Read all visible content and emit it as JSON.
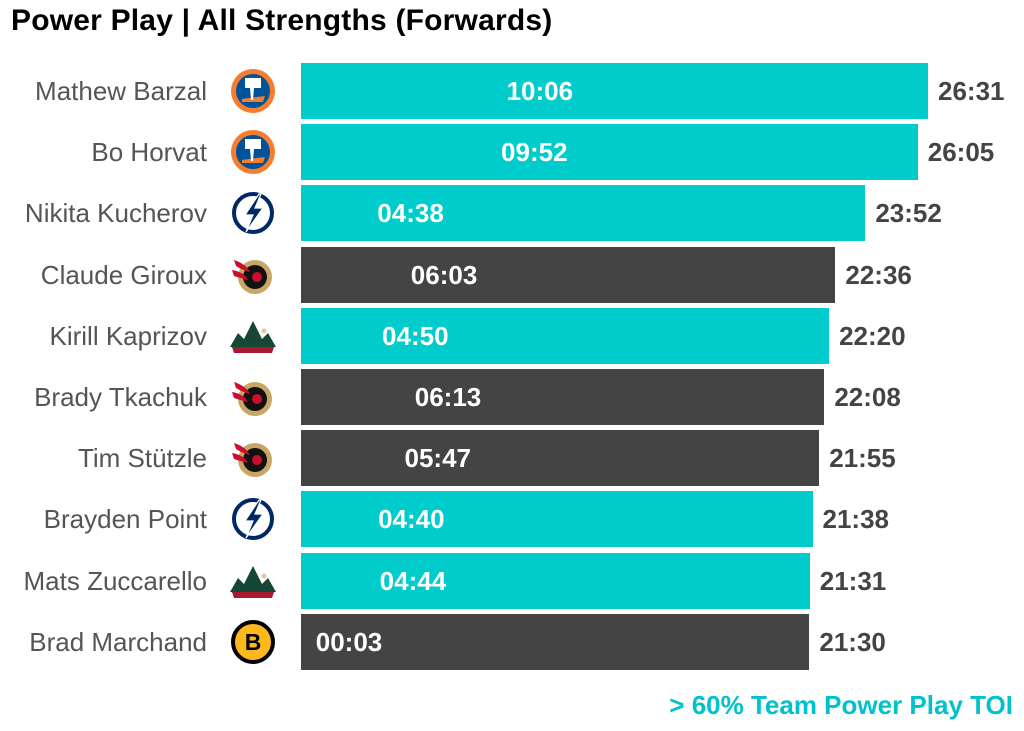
{
  "chart_data": {
    "type": "bar",
    "orientation": "horizontal",
    "title": "Power Play | All Strengths (Forwards)",
    "note": "> 60% Team Power Play TOI",
    "colors": {
      "highlight": "#00CCCC",
      "default": "#444444",
      "note": "#00C2CC"
    },
    "players": [
      {
        "name": "Mathew Barzal",
        "team_icon": "islanders-logo-icon",
        "total_toi": "26:31",
        "total_seconds": 1591,
        "pp_toi": "10:06",
        "pp_seconds": 606,
        "highlight": true
      },
      {
        "name": "Bo Horvat",
        "team_icon": "islanders-logo-icon",
        "total_toi": "26:05",
        "total_seconds": 1565,
        "pp_toi": "09:52",
        "pp_seconds": 592,
        "highlight": true
      },
      {
        "name": "Nikita Kucherov",
        "team_icon": "lightning-logo-icon",
        "total_toi": "23:52",
        "total_seconds": 1432,
        "pp_toi": "04:38",
        "pp_seconds": 278,
        "highlight": true
      },
      {
        "name": "Claude Giroux",
        "team_icon": "senators-logo-icon",
        "total_toi": "22:36",
        "total_seconds": 1356,
        "pp_toi": "06:03",
        "pp_seconds": 363,
        "highlight": false
      },
      {
        "name": "Kirill Kaprizov",
        "team_icon": "wild-logo-icon",
        "total_toi": "22:20",
        "total_seconds": 1340,
        "pp_toi": "04:50",
        "pp_seconds": 290,
        "highlight": true
      },
      {
        "name": "Brady Tkachuk",
        "team_icon": "senators-logo-icon",
        "total_toi": "22:08",
        "total_seconds": 1328,
        "pp_toi": "06:13",
        "pp_seconds": 373,
        "highlight": false
      },
      {
        "name": "Tim Stützle",
        "team_icon": "senators-logo-icon",
        "total_toi": "21:55",
        "total_seconds": 1315,
        "pp_toi": "05:47",
        "pp_seconds": 347,
        "highlight": false
      },
      {
        "name": "Brayden Point",
        "team_icon": "lightning-logo-icon",
        "total_toi": "21:38",
        "total_seconds": 1298,
        "pp_toi": "04:40",
        "pp_seconds": 280,
        "highlight": true
      },
      {
        "name": "Mats Zuccarello",
        "team_icon": "wild-logo-icon",
        "total_toi": "21:31",
        "total_seconds": 1291,
        "pp_toi": "04:44",
        "pp_seconds": 284,
        "highlight": true
      },
      {
        "name": "Brad Marchand",
        "team_icon": "bruins-logo-icon",
        "total_toi": "21:30",
        "total_seconds": 1290,
        "pp_toi": "00:03",
        "pp_seconds": 3,
        "highlight": false
      }
    ]
  }
}
